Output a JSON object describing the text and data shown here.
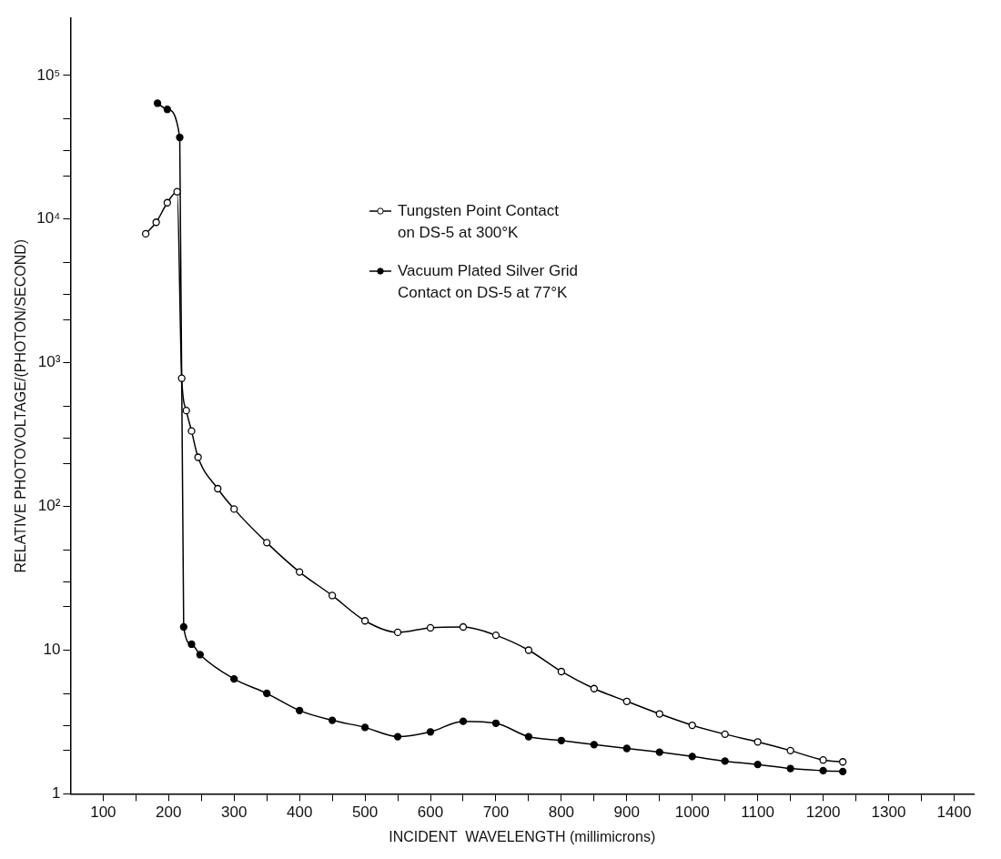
{
  "chart_data": {
    "type": "line",
    "xlabel": "INCIDENT  WAVELENGTH (millimicrons)",
    "ylabel": "RELATIVE PHOTOVOLTAGE/(PHOTON/SECOND)",
    "log": "y",
    "grid": false,
    "legend": "top",
    "marker": "circle",
    "line_style": "solid",
    "xlim": [
      50,
      1430
    ],
    "ylim": [
      1,
      250000
    ],
    "xticks": [
      100,
      {
        "value": 150,
        "label": null
      },
      200,
      {
        "value": 250,
        "label": null
      },
      300,
      {
        "value": 350,
        "label": null
      },
      400,
      {
        "value": 450,
        "label": null
      },
      500,
      {
        "value": 550,
        "label": null
      },
      600,
      {
        "value": 650,
        "label": null
      },
      700,
      {
        "value": 750,
        "label": null
      },
      800,
      {
        "value": 850,
        "label": null
      },
      900,
      {
        "value": 950,
        "label": null
      },
      1000,
      {
        "value": 1050,
        "label": null
      },
      1100,
      {
        "value": 1150,
        "label": null
      },
      1200,
      {
        "value": 1250,
        "label": null
      },
      1300,
      {
        "value": 1350,
        "label": null
      },
      1400
    ],
    "yticks": [
      1,
      {
        "value": 2,
        "label": null
      },
      {
        "value": 3,
        "label": null
      },
      {
        "value": 5,
        "label": null
      },
      10,
      {
        "value": 20,
        "label": null
      },
      {
        "value": 30,
        "label": null
      },
      {
        "value": 50,
        "label": null
      },
      {
        "value": 100,
        "label": "10²"
      },
      {
        "value": 200,
        "label": null
      },
      {
        "value": 300,
        "label": null
      },
      {
        "value": 500,
        "label": null
      },
      {
        "value": 1000,
        "label": "10³"
      },
      {
        "value": 2000,
        "label": null
      },
      {
        "value": 3000,
        "label": null
      },
      {
        "value": 5000,
        "label": null
      },
      {
        "value": 10000,
        "label": "10⁴"
      },
      {
        "value": 20000,
        "label": null
      },
      {
        "value": 30000,
        "label": null
      },
      {
        "value": 50000,
        "label": null
      },
      {
        "value": 100000,
        "label": "10⁵"
      }
    ],
    "series": [
      {
        "name": "Tungsten Point Contact\non DS-5 at 300°K",
        "color": "#000000",
        "x": [
          165,
          181,
          198,
          213,
          220,
          227,
          235,
          245,
          275,
          300,
          350,
          400,
          450,
          500,
          550,
          600,
          650,
          700,
          750,
          800,
          850,
          900,
          950,
          1000,
          1050,
          1100,
          1150,
          1200,
          1230
        ],
        "values": [
          7900,
          9500,
          13000,
          15500,
          780,
          465,
          335,
          220,
          133,
          96,
          56,
          35,
          24,
          16,
          13.3,
          14.3,
          14.5,
          12.7,
          10,
          7.1,
          5.4,
          4.4,
          3.6,
          3.0,
          2.6,
          2.3,
          2.0,
          1.72,
          1.67
        ]
      },
      {
        "name": "Vacuum Plated Silver Grid\nContact on DS-5 at 77°K",
        "color": "#000000",
        "x": [
          183,
          198,
          217,
          223,
          235,
          248,
          300,
          350,
          400,
          450,
          500,
          550,
          600,
          650,
          700,
          750,
          800,
          850,
          900,
          950,
          1000,
          1050,
          1100,
          1150,
          1200,
          1230
        ],
        "values": [
          64000,
          58000,
          37000,
          14.5,
          11,
          9.3,
          6.3,
          5.0,
          3.8,
          3.25,
          2.9,
          2.5,
          2.7,
          3.2,
          3.1,
          2.5,
          2.35,
          2.2,
          2.07,
          1.95,
          1.82,
          1.69,
          1.6,
          1.5,
          1.45,
          1.43
        ]
      }
    ]
  }
}
